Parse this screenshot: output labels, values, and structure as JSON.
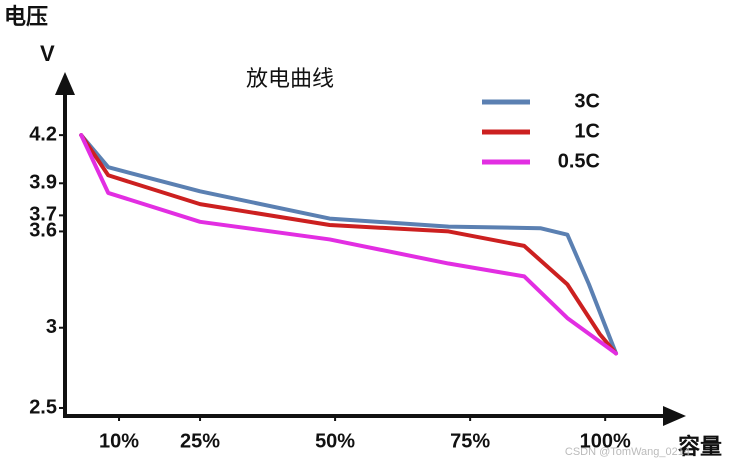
{
  "chart_data": {
    "type": "line",
    "title": "放电曲线",
    "y_label_top": "电压",
    "y_label": "V",
    "x_label": "容量",
    "watermark": "CSDN @TomWang_0214",
    "xlim": [
      0,
      112
    ],
    "ylim": [
      2.45,
      4.45
    ],
    "xticks": [
      {
        "value": 10,
        "label": "10%"
      },
      {
        "value": 25,
        "label": "25%"
      },
      {
        "value": 50,
        "label": "50%"
      },
      {
        "value": 75,
        "label": "75%"
      },
      {
        "value": 100,
        "label": "100%"
      }
    ],
    "yticks": [
      2.5,
      3.0,
      3.6,
      3.7,
      3.9,
      4.2
    ],
    "grid": false,
    "legend": "upper right",
    "series": [
      {
        "name": "3C",
        "color": "#5b80b2",
        "x": [
          3,
          8,
          25,
          49,
          71,
          88,
          93,
          97,
          102
        ],
        "values": [
          4.2,
          4.0,
          3.85,
          3.68,
          3.63,
          3.62,
          3.58,
          3.27,
          2.84
        ]
      },
      {
        "name": "1C",
        "color": "#cc2020",
        "x": [
          3,
          8,
          25,
          49,
          71,
          85,
          93,
          99,
          102
        ],
        "values": [
          4.2,
          3.95,
          3.77,
          3.64,
          3.6,
          3.51,
          3.27,
          2.96,
          2.84
        ]
      },
      {
        "name": "0.5C",
        "color": "#e22ee2",
        "x": [
          3,
          8,
          25,
          49,
          71,
          85,
          93,
          102
        ],
        "values": [
          4.2,
          3.84,
          3.66,
          3.55,
          3.4,
          3.32,
          3.06,
          2.84
        ]
      }
    ]
  }
}
